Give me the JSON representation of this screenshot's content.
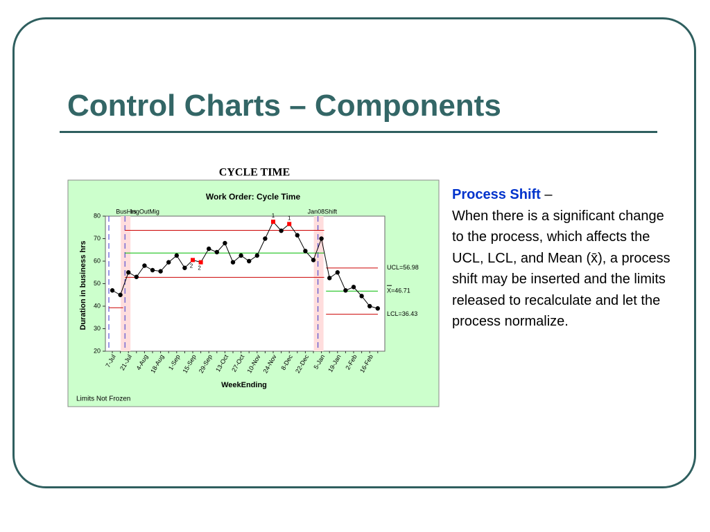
{
  "title": "Control Charts – Components",
  "text": {
    "heading": "Process Shift",
    "heading_dash": "–",
    "body": "When there is a significant change to the process, which affects the UCL, LCL, and Mean (x̄), a process shift may be inserted and the limits released to recalculate and let the process normalize."
  },
  "chart_data": {
    "type": "line",
    "heading": "CYCLE TIME",
    "title": "Work Order: Cycle Time",
    "ylabel": "Duration in business hrs",
    "xlabel": "WeekEnding",
    "footer": "Limits Not Frozen",
    "categories": [
      "7-Jul",
      null,
      "21-Jul",
      null,
      "4-Aug",
      null,
      "18-Aug",
      null,
      "1-Sep",
      null,
      "15-Sep",
      null,
      "29-Sep",
      null,
      "13-Oct",
      null,
      "27-Oct",
      null,
      "10-Nov",
      null,
      "24-Nov",
      null,
      "8-Dec",
      null,
      "22-Dec",
      null,
      "5-Jan",
      null,
      "19-Jan",
      null,
      "2-Feb",
      null,
      "16-Feb",
      null
    ],
    "series": [
      {
        "name": "Cycle Time",
        "color": "#000000",
        "values": [
          47,
          45,
          55,
          53,
          58,
          56,
          55.5,
          59.5,
          62.5,
          57,
          60.5,
          59.5,
          65.5,
          64,
          68,
          59.5,
          62.5,
          60,
          62.5,
          70,
          77.5,
          73.5,
          76.5,
          71.5,
          64.5,
          60.5,
          70,
          52.5,
          55,
          47,
          48.5,
          44.5,
          40,
          39
        ]
      }
    ],
    "flags": [
      {
        "index": 10,
        "label": "2"
      },
      {
        "index": 11,
        "label": "2"
      },
      {
        "index": 20,
        "label": "1"
      },
      {
        "index": 22,
        "label": "1"
      }
    ],
    "flag_color": "#ff0000",
    "shifts": [
      {
        "index": 2,
        "label": "BusHrs"
      },
      {
        "index": 4,
        "label": "IngOutMig"
      },
      {
        "index": 26,
        "label": "Jan08Shift"
      }
    ],
    "phases": [
      {
        "start": 0,
        "end": 1,
        "ucl": null,
        "mean": null,
        "lcl": 39.3
      },
      {
        "start": 2,
        "end": 26,
        "ucl": 73.7,
        "mean": 63.6,
        "lcl": 52.8
      },
      {
        "start": 27,
        "end": 33,
        "ucl": 56.98,
        "mean": 46.71,
        "lcl": 36.43
      }
    ],
    "limit_labels": {
      "ucl": "UCL=56.98",
      "mean": "X=46.71",
      "lcl": "LCL=36.43"
    },
    "ylim": [
      20,
      80
    ],
    "yticks": [
      20,
      30,
      40,
      50,
      60,
      70,
      80
    ]
  }
}
